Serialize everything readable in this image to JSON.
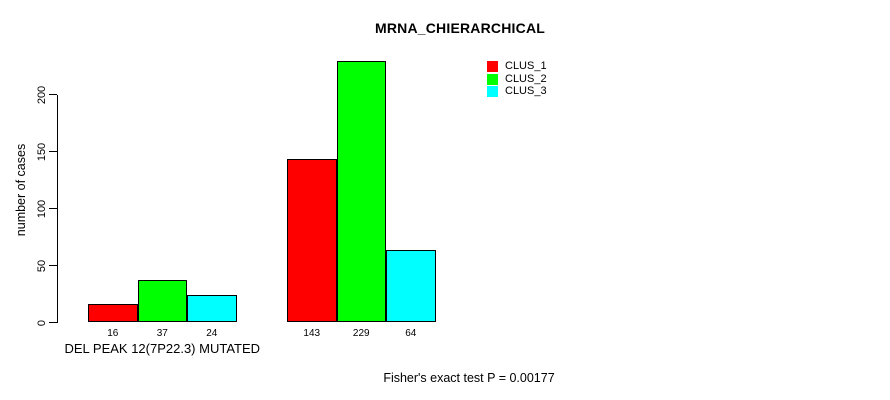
{
  "title": "MRNA_CHIERARCHICAL",
  "footer": "Fisher's exact test P = 0.00177",
  "chart_data": {
    "type": "bar",
    "title": "MRNA_CHIERARCHICAL",
    "xlabel": "",
    "ylabel": "number of cases",
    "ylim": [
      0,
      240
    ],
    "yticks": [
      0,
      50,
      100,
      150,
      200
    ],
    "grid": false,
    "bar_value_labels_shown": true,
    "groups": [
      {
        "label": "DEL PEAK 12(7P22.3) MUTATED",
        "values": [
          16,
          37,
          24
        ]
      },
      {
        "label": "",
        "values": [
          143,
          229,
          64
        ]
      }
    ],
    "series": [
      {
        "name": "CLUS_1",
        "color": "#ff0000",
        "values": [
          16,
          143
        ]
      },
      {
        "name": "CLUS_2",
        "color": "#00ff00",
        "values": [
          37,
          229
        ]
      },
      {
        "name": "CLUS_3",
        "color": "#00ffff",
        "values": [
          24,
          64
        ]
      }
    ],
    "legend": {
      "position": "top-right",
      "entries": [
        "CLUS_1",
        "CLUS_2",
        "CLUS_3"
      ]
    },
    "annotation": "Fisher's exact test P = 0.00177"
  }
}
